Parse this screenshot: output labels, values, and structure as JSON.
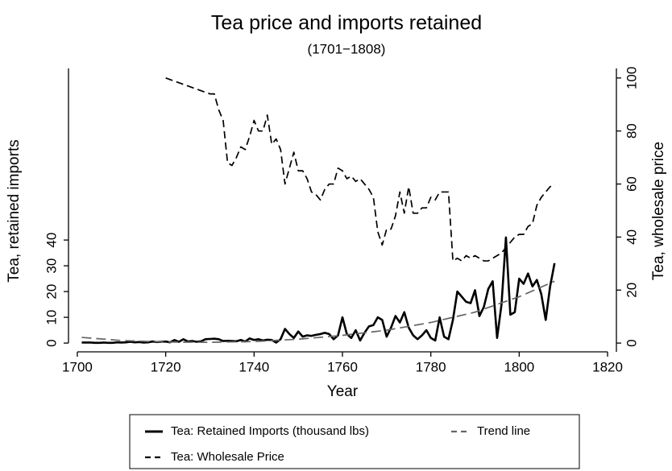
{
  "chart_data": {
    "type": "line",
    "title": "Tea price and imports retained",
    "subtitle": "(1701−1808)",
    "x_label": "Year",
    "y_label": "Tea, retained imports",
    "y2_label": "Tea, wholesale price",
    "xlim": [
      1698,
      1822
    ],
    "xticks": [
      1700,
      1720,
      1740,
      1760,
      1780,
      1800,
      1820
    ],
    "ylim": [
      -3.4,
      106.6
    ],
    "yticks": [
      0,
      10,
      20,
      30,
      40
    ],
    "y2lim": [
      -3.3,
      103.6
    ],
    "y2ticks": [
      0,
      20,
      40,
      60,
      80,
      100
    ],
    "series": [
      {
        "name": "Tea: Retained Imports (thousand lbs)",
        "color": "#000000",
        "line_style": "solid",
        "axis": "y",
        "x": [
          1701,
          1702,
          1703,
          1704,
          1705,
          1706,
          1707,
          1708,
          1709,
          1710,
          1711,
          1712,
          1713,
          1714,
          1715,
          1716,
          1717,
          1718,
          1719,
          1720,
          1721,
          1722,
          1723,
          1724,
          1725,
          1726,
          1727,
          1728,
          1729,
          1730,
          1731,
          1732,
          1733,
          1734,
          1735,
          1736,
          1737,
          1738,
          1739,
          1740,
          1741,
          1742,
          1743,
          1744,
          1745,
          1746,
          1747,
          1748,
          1749,
          1750,
          1751,
          1752,
          1753,
          1754,
          1755,
          1756,
          1757,
          1758,
          1759,
          1760,
          1761,
          1762,
          1763,
          1764,
          1765,
          1766,
          1767,
          1768,
          1769,
          1770,
          1771,
          1772,
          1773,
          1774,
          1775,
          1776,
          1777,
          1778,
          1779,
          1780,
          1781,
          1782,
          1783,
          1784,
          1785,
          1786,
          1787,
          1788,
          1789,
          1790,
          1791,
          1792,
          1793,
          1794,
          1795,
          1796,
          1797,
          1798,
          1799,
          1800,
          1801,
          1802,
          1803,
          1804,
          1805,
          1806,
          1807,
          1808
        ],
        "values": [
          0.2,
          0.2,
          0.2,
          0.1,
          0.1,
          0.2,
          0.1,
          0.1,
          0.3,
          0.2,
          0.3,
          0.5,
          0.3,
          0.4,
          0.2,
          0.3,
          0.6,
          0.4,
          0.5,
          0.6,
          0.3,
          1.2,
          0.5,
          1.5,
          0.6,
          0.8,
          0.5,
          0.7,
          1.5,
          1.6,
          1.7,
          1.5,
          0.8,
          0.9,
          0.8,
          0.7,
          1.2,
          0.6,
          1.8,
          1.2,
          1.5,
          1.0,
          1.3,
          1.2,
          0.2,
          1.5,
          5.5,
          3.5,
          2.0,
          4.5,
          2.5,
          3.0,
          2.8,
          3.2,
          3.5,
          4.0,
          3.5,
          1.5,
          3.0,
          10.0,
          3.5,
          2.0,
          5.0,
          1.0,
          4.0,
          6.5,
          7.0,
          10.0,
          9.0,
          2.5,
          6.0,
          10.5,
          8.0,
          12.0,
          6.0,
          3.0,
          1.5,
          3.0,
          5.0,
          2.0,
          1.0,
          10.0,
          2.5,
          1.5,
          9.0,
          20.0,
          18.0,
          16.0,
          15.5,
          20.5,
          10.5,
          14.0,
          21.0,
          24.0,
          2.0,
          15.0,
          41.0,
          11.0,
          12.0,
          25.0,
          23.0,
          27.0,
          22.0,
          24.5,
          19.0,
          9.0,
          22.0,
          31.0
        ]
      },
      {
        "name": "Trend line",
        "color": "#666666",
        "line_style": "longdash",
        "axis": "y",
        "x": [
          1701,
          1710,
          1720,
          1730,
          1740,
          1750,
          1760,
          1770,
          1780,
          1790,
          1800,
          1808
        ],
        "values": [
          2.2,
          1.0,
          0.4,
          0.3,
          0.6,
          1.5,
          3.0,
          5.0,
          8.0,
          12,
          18,
          24
        ]
      },
      {
        "name": "Tea: Wholesale Price",
        "color": "#000000",
        "line_style": "dash",
        "axis": "y2",
        "x": [
          1720,
          1725,
          1730,
          1731,
          1732,
          1733,
          1734,
          1735,
          1736,
          1737,
          1738,
          1739,
          1740,
          1741,
          1742,
          1743,
          1744,
          1745,
          1746,
          1747,
          1748,
          1749,
          1750,
          1751,
          1752,
          1753,
          1754,
          1755,
          1756,
          1757,
          1758,
          1759,
          1760,
          1761,
          1762,
          1763,
          1764,
          1765,
          1766,
          1767,
          1768,
          1769,
          1770,
          1771,
          1772,
          1773,
          1774,
          1775,
          1776,
          1777,
          1778,
          1779,
          1780,
          1781,
          1782,
          1783,
          1784,
          1785,
          1786,
          1787,
          1788,
          1789,
          1790,
          1791,
          1792,
          1793,
          1794,
          1795,
          1796,
          1797,
          1798,
          1799,
          1800,
          1801,
          1802,
          1803,
          1804,
          1805,
          1806,
          1807,
          1808
        ],
        "values": [
          100,
          97,
          94,
          94,
          88,
          84,
          68,
          67,
          70,
          74,
          73,
          78,
          84,
          80,
          80,
          86,
          75,
          77,
          73,
          60,
          66,
          72,
          65,
          65,
          62,
          57,
          56,
          54,
          58,
          60,
          60,
          66,
          65,
          62,
          63,
          61,
          62,
          60,
          58,
          55,
          42,
          37,
          43,
          43,
          48,
          57,
          49,
          59,
          49,
          49,
          51,
          51,
          55,
          54,
          57,
          57,
          57,
          31,
          32,
          31,
          33,
          32,
          33,
          32,
          31,
          31,
          32,
          33,
          34,
          36,
          38,
          40,
          41,
          41,
          44,
          45,
          52,
          55,
          57,
          59,
          60
        ]
      }
    ]
  }
}
